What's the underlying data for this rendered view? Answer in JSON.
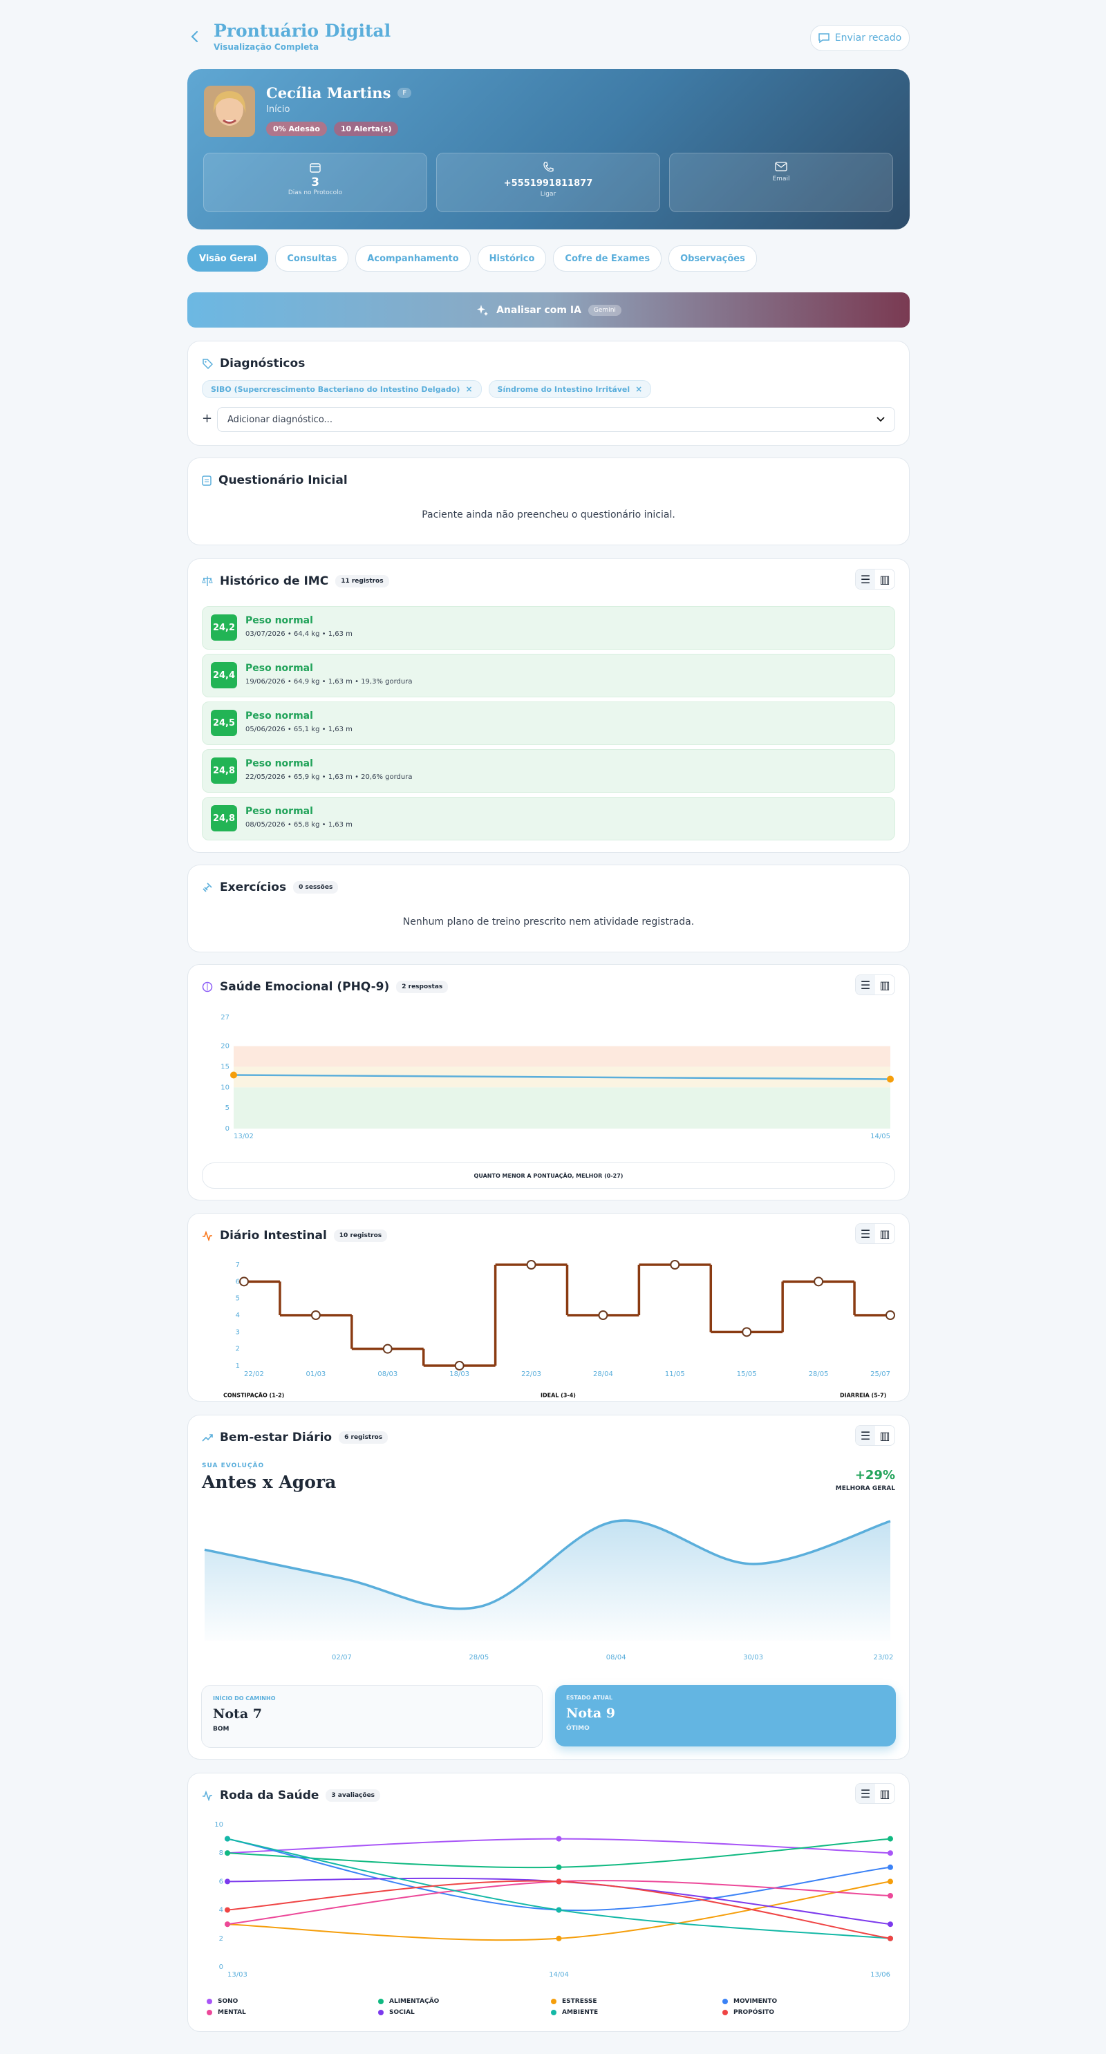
{
  "header": {
    "title": "Prontuário Digital",
    "subtitle": "Visualização Completa",
    "action": "Enviar recado"
  },
  "patient": {
    "name": "Cecília Martins",
    "badge": "F",
    "status": "Início",
    "tags": [
      "0% Adesão",
      "10 Alerta(s)"
    ],
    "stats": [
      {
        "value": "3",
        "label": "Dias no Protocolo"
      },
      {
        "value": "+5551991811877",
        "label": "Ligar"
      },
      {
        "label": "Email"
      }
    ]
  },
  "tabs": [
    "Visão Geral",
    "Consultas",
    "Acompanhamento",
    "Histórico",
    "Cofre de Exames",
    "Observações"
  ],
  "ai": {
    "label": "Analisar com IA",
    "badge": "Gemini"
  },
  "diagnostics": {
    "title": "Diagnósticos",
    "items": [
      "SIBO (Supercrescimento Bacteriano do Intestino Delgado)",
      "Síndrome do Intestino Irritável"
    ],
    "placeholder": "Adicionar diagnóstico..."
  },
  "questionnaire": {
    "title": "Questionário Inicial",
    "message": "Paciente ainda não preencheu o questionário inicial."
  },
  "imc": {
    "title": "Histórico de IMC",
    "count": "11 registros",
    "records": [
      {
        "bmi": "24,2",
        "status": "Peso normal",
        "details": "03/07/2026 • 64,4 kg • 1,63 m"
      },
      {
        "bmi": "24,4",
        "status": "Peso normal",
        "details": "19/06/2026 • 64,9 kg • 1,63 m • 19,3% gordura"
      },
      {
        "bmi": "24,5",
        "status": "Peso normal",
        "details": "05/06/2026 • 65,1 kg • 1,63 m"
      },
      {
        "bmi": "24,8",
        "status": "Peso normal",
        "details": "22/05/2026 • 65,9 kg • 1,63 m • 20,6% gordura"
      },
      {
        "bmi": "24,8",
        "status": "Peso normal",
        "details": "08/05/2026 • 65,8 kg • 1,63 m"
      }
    ]
  },
  "exercises": {
    "title": "Exercícios",
    "count": "0 sessões",
    "message": "Nenhum plano de treino prescrito nem atividade registrada."
  },
  "emotional": {
    "title": "Saúde Emocional (PHQ-9)",
    "count": "2 respostas",
    "note": "QUANTO MENOR A PONTUAÇÃO, MELHOR (0-27)",
    "chart": {
      "type": "line",
      "categories": [
        "13/02",
        "14/05"
      ],
      "values": [
        13,
        12
      ],
      "color": "#5aaedb",
      "point_color": "#f59e0b",
      "ylim": [
        0,
        27
      ],
      "yticks": [
        0,
        5,
        10,
        15,
        20,
        27
      ]
    }
  },
  "bowel": {
    "title": "Diário Intestinal",
    "count": "10 registros",
    "chart": {
      "type": "step",
      "categories": [
        "22/02",
        "01/03",
        "08/03",
        "18/03",
        "22/03",
        "28/04",
        "11/05",
        "15/05",
        "28/05",
        "25/07"
      ],
      "values": [
        6,
        4,
        2,
        1,
        7,
        4,
        7,
        3,
        6,
        4
      ],
      "color": "#8a3b12",
      "ylim": [
        1,
        7
      ],
      "yticks": [
        1,
        2,
        3,
        4,
        5,
        6,
        7
      ],
      "zones": [
        "CONSTIPAÇÃO (1-2)",
        "IDEAL (3-4)",
        "DIARREIA (5-7)"
      ]
    }
  },
  "wellbeing": {
    "title": "Bem-estar Diário",
    "count": "6 registros",
    "kicker": "SUA EVOLUÇÃO",
    "heading": "Antes x Agora",
    "change": "+29%",
    "change_label": "MELHORA GERAL",
    "chart": {
      "type": "area",
      "categories": [
        null,
        "02/07",
        "28/05",
        "08/04",
        "30/03",
        "23/02"
      ],
      "values": [
        7,
        5,
        3,
        9,
        6,
        9
      ],
      "color": "#5aaedb"
    },
    "cards": [
      {
        "label": "INÍCIO DO CAMINHO",
        "value": "Nota 7",
        "note": "BOM"
      },
      {
        "label": "ESTADO ATUAL",
        "value": "Nota 9",
        "note": "ÓTIMO"
      }
    ]
  },
  "wheel": {
    "title": "Roda da Saúde",
    "count": "3 avaliações",
    "chart": {
      "type": "line",
      "categories": [
        "13/03",
        "14/04",
        "13/06"
      ],
      "ylim": [
        0,
        10
      ],
      "yticks": [
        0,
        2,
        4,
        6,
        8,
        10
      ],
      "series": [
        {
          "name": "SONO",
          "color": "#a855f7",
          "values": [
            8,
            9,
            8
          ]
        },
        {
          "name": "ALIMENTAÇÃO",
          "color": "#10b981",
          "values": [
            8,
            7,
            9
          ]
        },
        {
          "name": "ESTRESSE",
          "color": "#f59e0b",
          "values": [
            3,
            2,
            6
          ]
        },
        {
          "name": "MOVIMENTO",
          "color": "#3b82f6",
          "values": [
            9,
            4,
            7
          ]
        },
        {
          "name": "MENTAL",
          "color": "#ec4899",
          "values": [
            3,
            6,
            5
          ]
        },
        {
          "name": "SOCIAL",
          "color": "#7c3aed",
          "values": [
            6,
            6,
            3
          ]
        },
        {
          "name": "AMBIENTE",
          "color": "#14b8a6",
          "values": [
            9,
            4,
            2
          ]
        },
        {
          "name": "PROPÓSITO",
          "color": "#ef4444",
          "values": [
            4,
            6,
            2
          ]
        }
      ]
    }
  }
}
